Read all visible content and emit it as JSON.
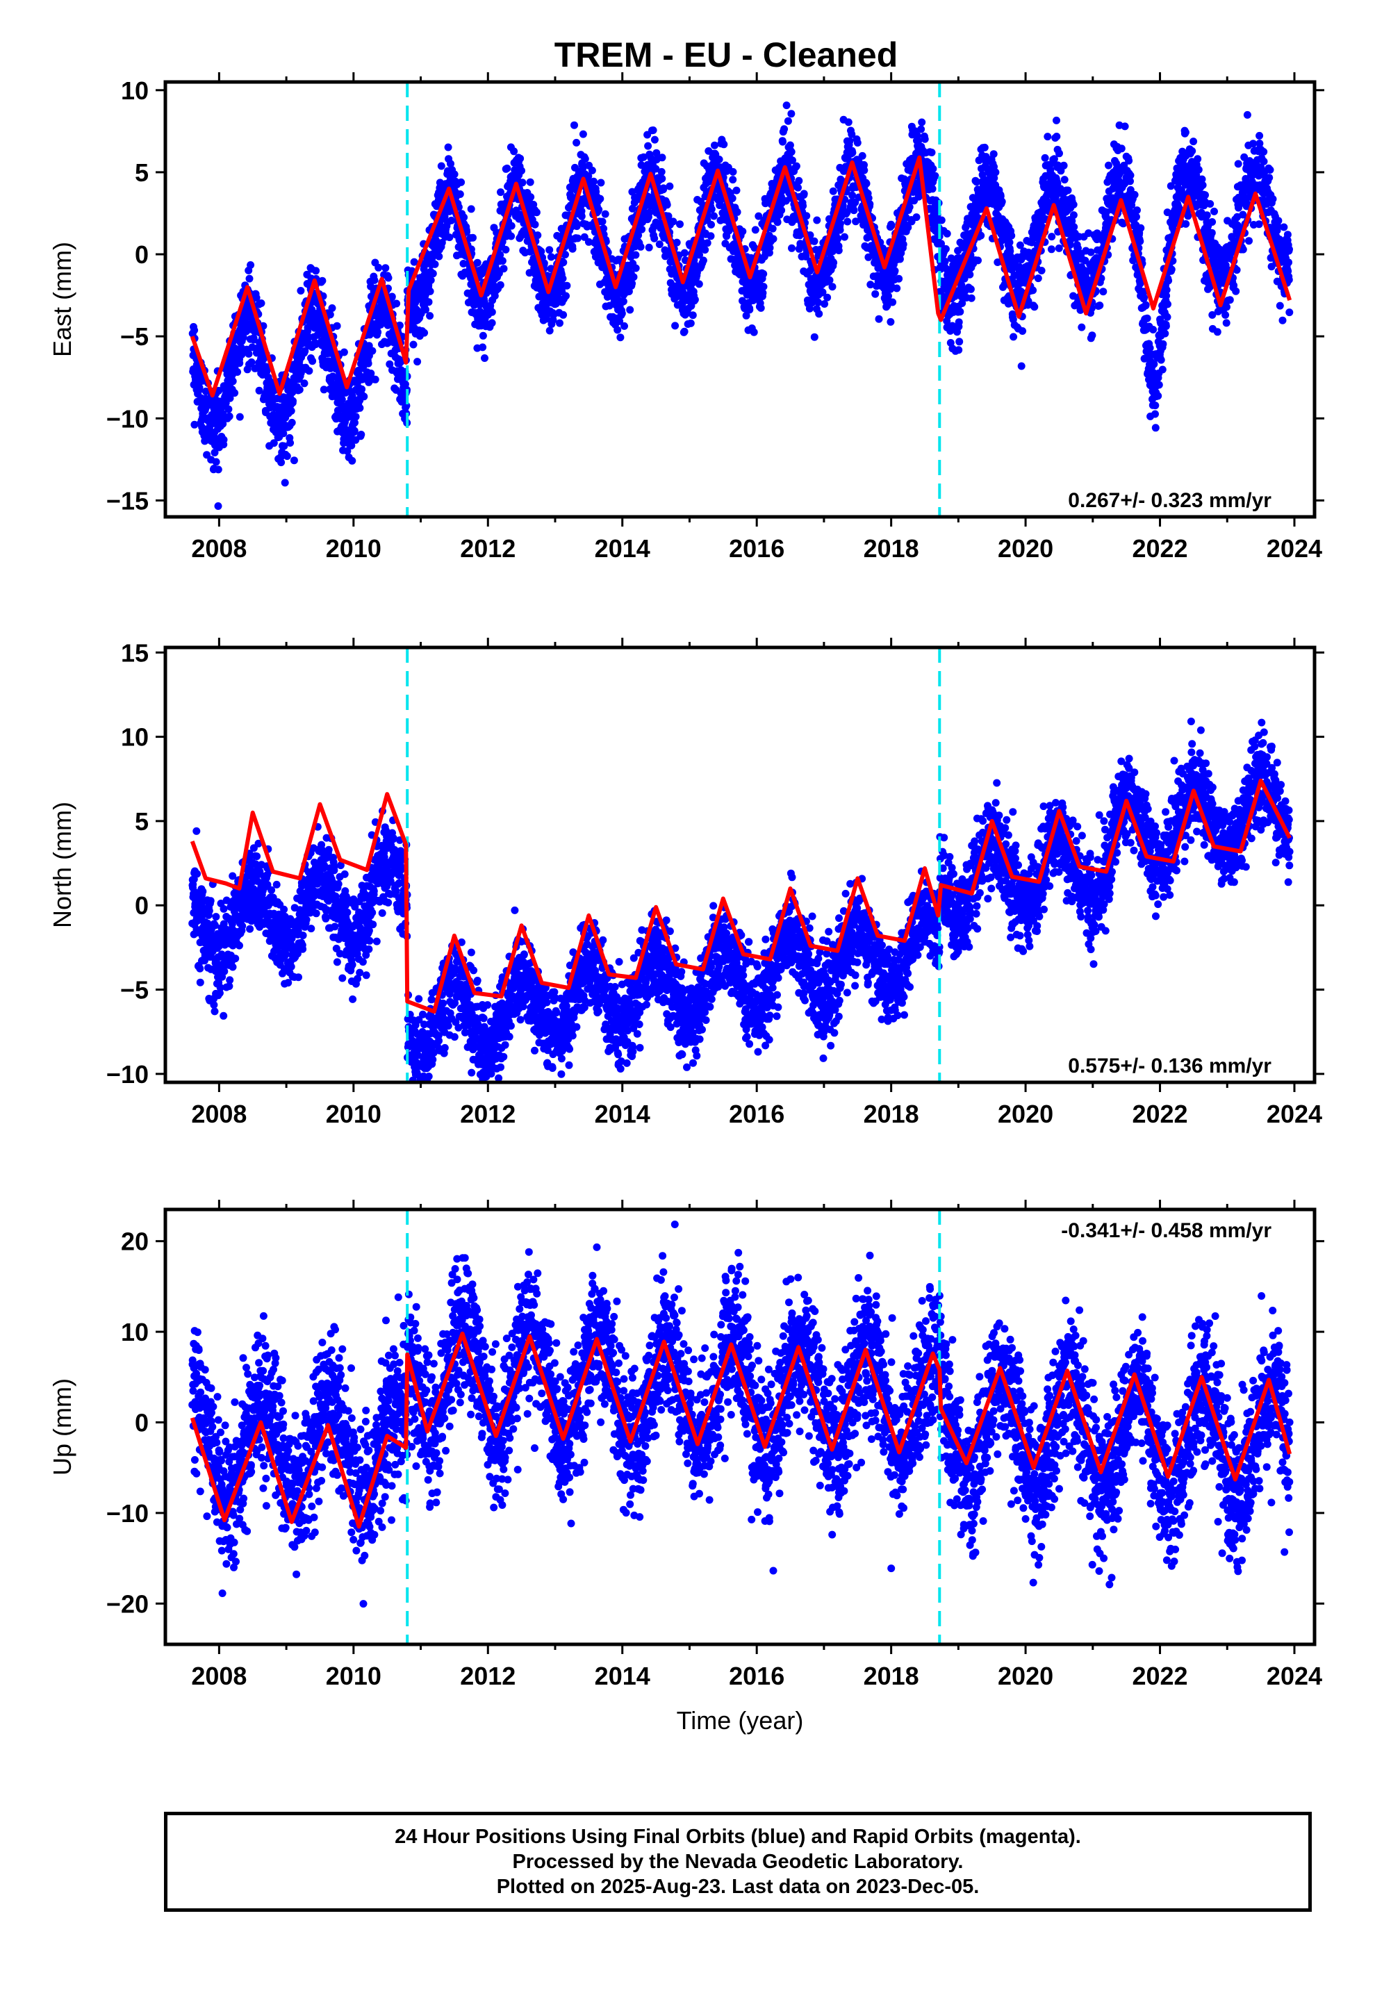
{
  "title": "TREM  - EU - Cleaned",
  "chart_data": [
    {
      "type": "scatter",
      "ylabel": "East (mm)",
      "xlabel": "",
      "xlim": [
        2007.2,
        2024.3
      ],
      "ylim": [
        -16,
        10.5
      ],
      "yticks": [
        -15,
        -10,
        -5,
        0,
        5,
        10
      ],
      "xticks": [
        2008,
        2010,
        2012,
        2014,
        2016,
        2018,
        2020,
        2022,
        2024
      ],
      "rate_label": "0.267+/- 0.323 mm/yr",
      "rate_label_position": "bottom-right",
      "data_range": [
        2007.6,
        2023.93
      ],
      "offsets_at": [
        2010.8,
        2018.72
      ],
      "fit": {
        "linear_mm_per_yr": 0.267,
        "segment_levels": [
          -5.2,
          1.2,
          -0.4
        ],
        "annual_amplitude": [
          3.3,
          3.3,
          3.3
        ],
        "annual_peak_phase": 0.42
      },
      "scatter_noise_mm": 1.3,
      "fit_line_points": [
        [
          2007.6,
          -5.0
        ],
        [
          2007.9,
          -8.6
        ],
        [
          2008.42,
          -2.0
        ],
        [
          2008.9,
          -8.5
        ],
        [
          2009.42,
          -1.6
        ],
        [
          2009.9,
          -8.1
        ],
        [
          2010.42,
          -1.5
        ],
        [
          2010.78,
          -6.6
        ],
        [
          2010.82,
          -2.2
        ],
        [
          2011.42,
          4.0
        ],
        [
          2011.9,
          -2.5
        ],
        [
          2012.42,
          4.3
        ],
        [
          2012.9,
          -2.3
        ],
        [
          2013.42,
          4.6
        ],
        [
          2013.9,
          -2.0
        ],
        [
          2014.42,
          4.9
        ],
        [
          2014.9,
          -1.7
        ],
        [
          2015.42,
          5.1
        ],
        [
          2015.9,
          -1.4
        ],
        [
          2016.42,
          5.3
        ],
        [
          2016.9,
          -1.1
        ],
        [
          2017.42,
          5.6
        ],
        [
          2017.9,
          -0.8
        ],
        [
          2018.42,
          5.9
        ],
        [
          2018.7,
          -3.6
        ],
        [
          2018.74,
          -4.0
        ],
        [
          2019.42,
          2.8
        ],
        [
          2019.9,
          -3.8
        ],
        [
          2020.42,
          3.0
        ],
        [
          2020.9,
          -3.6
        ],
        [
          2021.42,
          3.3
        ],
        [
          2021.9,
          -3.3
        ],
        [
          2022.42,
          3.5
        ],
        [
          2022.9,
          -3.1
        ],
        [
          2023.42,
          3.7
        ],
        [
          2023.93,
          -2.8
        ]
      ],
      "series": [
        {
          "name": "",
          "color": "#0000ff",
          "kind": "daily positions (dots)"
        },
        {
          "name": "",
          "color": "#ff0000",
          "kind": "model fit (line)"
        }
      ],
      "offset_line_color": "#00e5ee"
    },
    {
      "type": "scatter",
      "ylabel": "North (mm)",
      "xlabel": "",
      "xlim": [
        2007.2,
        2024.3
      ],
      "ylim": [
        -10.5,
        15.3
      ],
      "yticks": [
        -10,
        -5,
        0,
        5,
        10,
        15
      ],
      "xticks": [
        2008,
        2010,
        2012,
        2014,
        2016,
        2018,
        2020,
        2022,
        2024
      ],
      "rate_label": "0.575+/- 0.136 mm/yr",
      "rate_label_position": "bottom-right",
      "data_range": [
        2007.6,
        2023.93
      ],
      "offsets_at": [
        2010.8,
        2018.72
      ],
      "fit": {
        "linear_mm_per_yr": 0.575,
        "segment_levels": [
          3.0,
          -4.7,
          -1.0
        ],
        "annual_amplitude": [
          2.0,
          2.0,
          2.0
        ],
        "annual_peak_phase": 0.5
      },
      "scatter_noise_mm": 1.3,
      "fit_line_points": [
        [
          2007.6,
          3.8
        ],
        [
          2007.8,
          1.6
        ],
        [
          2008.1,
          1.3
        ],
        [
          2008.3,
          1.0
        ],
        [
          2008.5,
          5.5
        ],
        [
          2008.8,
          2.0
        ],
        [
          2009.2,
          1.6
        ],
        [
          2009.5,
          6.0
        ],
        [
          2009.8,
          2.7
        ],
        [
          2010.2,
          2.1
        ],
        [
          2010.5,
          6.6
        ],
        [
          2010.78,
          3.6
        ],
        [
          2010.8,
          -5.7
        ],
        [
          2011.2,
          -6.3
        ],
        [
          2011.5,
          -1.8
        ],
        [
          2011.8,
          -5.2
        ],
        [
          2012.2,
          -5.4
        ],
        [
          2012.5,
          -1.2
        ],
        [
          2012.8,
          -4.6
        ],
        [
          2013.2,
          -4.9
        ],
        [
          2013.5,
          -0.6
        ],
        [
          2013.8,
          -4.1
        ],
        [
          2014.2,
          -4.3
        ],
        [
          2014.5,
          -0.1
        ],
        [
          2014.8,
          -3.5
        ],
        [
          2015.2,
          -3.8
        ],
        [
          2015.5,
          0.4
        ],
        [
          2015.8,
          -2.9
        ],
        [
          2016.2,
          -3.2
        ],
        [
          2016.5,
          1.0
        ],
        [
          2016.8,
          -2.4
        ],
        [
          2017.2,
          -2.7
        ],
        [
          2017.5,
          1.6
        ],
        [
          2017.8,
          -1.8
        ],
        [
          2018.2,
          -2.1
        ],
        [
          2018.5,
          2.2
        ],
        [
          2018.7,
          -0.6
        ],
        [
          2018.74,
          1.2
        ],
        [
          2019.2,
          0.7
        ],
        [
          2019.5,
          5.0
        ],
        [
          2019.8,
          1.7
        ],
        [
          2020.2,
          1.4
        ],
        [
          2020.5,
          5.6
        ],
        [
          2020.8,
          2.3
        ],
        [
          2021.2,
          2.0
        ],
        [
          2021.5,
          6.2
        ],
        [
          2021.8,
          2.9
        ],
        [
          2022.2,
          2.6
        ],
        [
          2022.5,
          6.8
        ],
        [
          2022.8,
          3.5
        ],
        [
          2023.2,
          3.2
        ],
        [
          2023.5,
          7.4
        ],
        [
          2023.93,
          4.0
        ]
      ],
      "series": [
        {
          "name": "",
          "color": "#0000ff",
          "kind": "daily positions (dots)"
        },
        {
          "name": "",
          "color": "#ff0000",
          "kind": "model fit (line)"
        }
      ],
      "offset_line_color": "#00e5ee"
    },
    {
      "type": "scatter",
      "ylabel": "Up (mm)",
      "xlabel": "Time (year)",
      "xlim": [
        2007.2,
        2024.3
      ],
      "ylim": [
        -24.5,
        23.5
      ],
      "yticks": [
        -20,
        -10,
        0,
        10,
        20
      ],
      "xticks": [
        2008,
        2010,
        2012,
        2014,
        2016,
        2018,
        2020,
        2022,
        2024
      ],
      "rate_label": "-0.341+/- 0.458 mm/yr",
      "rate_label_position": "top-right",
      "data_range": [
        2007.6,
        2023.93
      ],
      "offsets_at": [
        2010.8,
        2018.72
      ],
      "fit": {
        "linear_mm_per_yr": -0.341,
        "segment_levels": [
          -5.0,
          3.5,
          0.5
        ],
        "annual_amplitude": [
          5.5,
          6.0,
          6.0
        ],
        "annual_peak_phase": 0.65
      },
      "scatter_noise_mm": 3.8,
      "fit_line_points": [
        [
          2007.6,
          0.5
        ],
        [
          2008.08,
          -10.8
        ],
        [
          2008.62,
          0.0
        ],
        [
          2009.08,
          -11.0
        ],
        [
          2009.62,
          -0.3
        ],
        [
          2010.08,
          -11.5
        ],
        [
          2010.5,
          -1.5
        ],
        [
          2010.78,
          -2.8
        ],
        [
          2010.8,
          7.5
        ],
        [
          2011.1,
          -1.0
        ],
        [
          2011.62,
          9.8
        ],
        [
          2012.12,
          -1.5
        ],
        [
          2012.62,
          9.5
        ],
        [
          2013.12,
          -1.8
        ],
        [
          2013.62,
          9.2
        ],
        [
          2014.12,
          -2.1
        ],
        [
          2014.62,
          8.9
        ],
        [
          2015.12,
          -2.4
        ],
        [
          2015.62,
          8.6
        ],
        [
          2016.12,
          -2.7
        ],
        [
          2016.62,
          8.3
        ],
        [
          2017.12,
          -3.0
        ],
        [
          2017.62,
          8.0
        ],
        [
          2018.12,
          -3.3
        ],
        [
          2018.62,
          7.6
        ],
        [
          2018.72,
          5.8
        ],
        [
          2018.74,
          1.5
        ],
        [
          2019.12,
          -4.5
        ],
        [
          2019.62,
          6.0
        ],
        [
          2020.12,
          -5.0
        ],
        [
          2020.62,
          5.7
        ],
        [
          2021.12,
          -5.5
        ],
        [
          2021.62,
          5.3
        ],
        [
          2022.12,
          -6.0
        ],
        [
          2022.62,
          5.0
        ],
        [
          2023.12,
          -6.3
        ],
        [
          2023.62,
          4.7
        ],
        [
          2023.93,
          -3.5
        ]
      ],
      "series": [
        {
          "name": "",
          "color": "#0000ff",
          "kind": "daily positions (dots)"
        },
        {
          "name": "",
          "color": "#ff0000",
          "kind": "model fit (line)"
        }
      ],
      "offset_line_color": "#00e5ee"
    }
  ],
  "footer": {
    "line1": "24 Hour Positions Using Final Orbits (blue) and Rapid Orbits (magenta).",
    "line2": "Processed by the Nevada Geodetic Laboratory.",
    "line3": "Plotted on 2025-Aug-23. Last data on 2023-Dec-05."
  }
}
